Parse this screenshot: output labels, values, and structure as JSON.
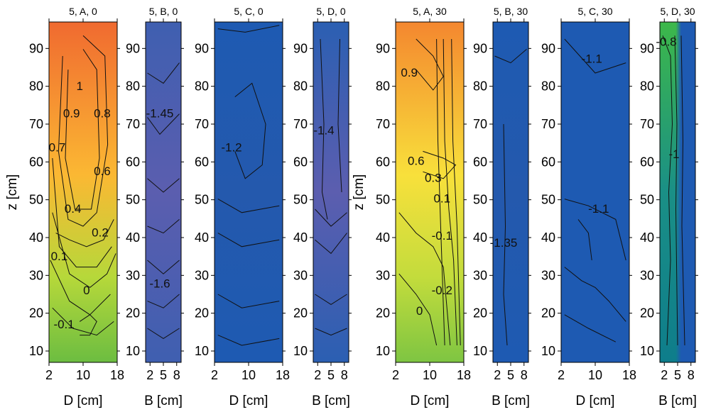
{
  "chart_data": [
    {
      "type": "heatmap",
      "title": "5, A, 0",
      "xlabel": "D [cm]",
      "ylabel": "z [cm]",
      "x_ticks": [
        "2",
        "10",
        "18"
      ],
      "y_ticks": [
        "10",
        "20",
        "30",
        "40",
        "50",
        "60",
        "70",
        "80",
        "90"
      ],
      "xlim": [
        2,
        18
      ],
      "ylim": [
        7,
        97
      ],
      "colors": {
        "top": "#f06a30",
        "mid": "#fbb833",
        "low": "#b6d83a",
        "bottom": "#6cbd41"
      },
      "contour_labels": [
        "1",
        "0.9",
        "0.8",
        "0.7",
        "0.6",
        "0.4",
        "0.2",
        "0.1",
        "0",
        "-0.1"
      ]
    },
    {
      "type": "heatmap",
      "title": "5, B, 0",
      "xlabel": "B [cm]",
      "x_ticks": [
        "2",
        "5",
        "8"
      ],
      "y_ticks": [
        "10",
        "20",
        "30",
        "40",
        "50",
        "60",
        "70",
        "80",
        "90"
      ],
      "xlim": [
        1,
        9
      ],
      "ylim": [
        7,
        97
      ],
      "colors": {
        "top": "#3f5fb0",
        "mid": "#5b5eaf",
        "bottom": "#3f5fb0"
      },
      "contour_labels": [
        "-1.45",
        "-1.6"
      ]
    },
    {
      "type": "heatmap",
      "title": "5, C, 0",
      "xlabel": "D [cm]",
      "x_ticks": [
        "2",
        "10",
        "18"
      ],
      "y_ticks": [
        "10",
        "20",
        "30",
        "40",
        "50",
        "60",
        "70",
        "80",
        "90"
      ],
      "xlim": [
        2,
        18
      ],
      "ylim": [
        7,
        97
      ],
      "colors": {
        "top": "#1e5ab2",
        "mid": "#2459ad",
        "bottom": "#1e5ab2"
      },
      "contour_labels": [
        "-1.2"
      ]
    },
    {
      "type": "heatmap",
      "title": "5, D, 0",
      "xlabel": "B [cm]",
      "x_ticks": [
        "2",
        "5",
        "8"
      ],
      "y_ticks": [
        "10",
        "20",
        "30",
        "40",
        "50",
        "60",
        "70",
        "80",
        "90"
      ],
      "xlim": [
        1,
        9
      ],
      "ylim": [
        7,
        97
      ],
      "colors": {
        "top": "#2b5fb2",
        "mid": "#5c5eaf",
        "bottom": "#2b5fb2"
      },
      "contour_labels": [
        "-1.4"
      ]
    },
    {
      "type": "heatmap",
      "title": "5, A, 30",
      "xlabel": "D [cm]",
      "ylabel": "z [cm]",
      "x_ticks": [
        "2",
        "10",
        "18"
      ],
      "y_ticks": [
        "10",
        "20",
        "30",
        "40",
        "50",
        "60",
        "70",
        "80",
        "90"
      ],
      "xlim": [
        2,
        18
      ],
      "ylim": [
        7,
        97
      ],
      "colors": {
        "top": "#f4872f",
        "mid": "#f8e03b",
        "low": "#c3dc3c",
        "bottom": "#7ec542"
      },
      "contour_labels": [
        "0.9",
        "0.6",
        "0.3",
        "0.1",
        "-0.1",
        "-0.2",
        "0"
      ]
    },
    {
      "type": "heatmap",
      "title": "5, B, 30",
      "xlabel": "B [cm]",
      "x_ticks": [
        "2",
        "5",
        "8"
      ],
      "y_ticks": [
        "10",
        "20",
        "30",
        "40",
        "50",
        "60",
        "70",
        "80",
        "90"
      ],
      "xlim": [
        1,
        9
      ],
      "ylim": [
        7,
        97
      ],
      "colors": {
        "top": "#1e5ab2",
        "mid": "#2459ad",
        "bottom": "#1e5ab2"
      },
      "contour_labels": [
        "-1.35"
      ]
    },
    {
      "type": "heatmap",
      "title": "5, C, 30",
      "xlabel": "D [cm]",
      "x_ticks": [
        "2",
        "10",
        "18"
      ],
      "y_ticks": [
        "10",
        "20",
        "30",
        "40",
        "50",
        "60",
        "70",
        "80",
        "90"
      ],
      "xlim": [
        2,
        18
      ],
      "ylim": [
        7,
        97
      ],
      "colors": {
        "top": "#1e5ab2",
        "mid": "#1e5ab2",
        "bottom": "#1e5ab2"
      },
      "contour_labels": [
        "-1.1",
        "-1.1"
      ]
    },
    {
      "type": "heatmap",
      "title": "5, D, 30",
      "xlabel": "B [cm]",
      "x_ticks": [
        "2",
        "5",
        "8"
      ],
      "y_ticks": [
        "10",
        "20",
        "30",
        "40",
        "50",
        "60",
        "70",
        "80",
        "90"
      ],
      "xlim": [
        1,
        9
      ],
      "ylim": [
        7,
        97
      ],
      "colors": {
        "top": "#3db84a",
        "mid": "#1a8f86",
        "bottom": "#0e7d8b",
        "right": "#1e5ab2"
      },
      "contour_labels": [
        "-0.8",
        "-1"
      ]
    }
  ]
}
